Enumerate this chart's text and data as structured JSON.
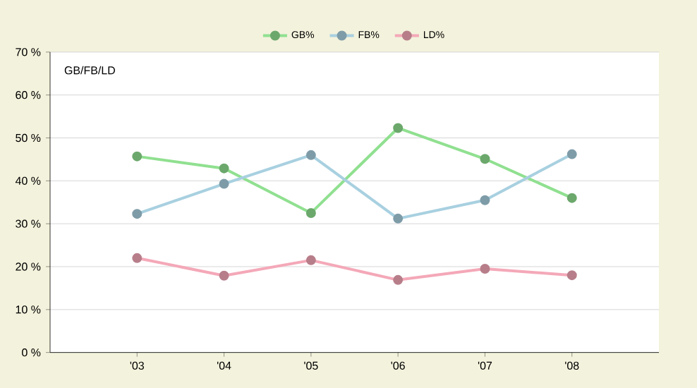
{
  "chart_data": {
    "type": "line",
    "title": "GB/FB/LD",
    "categories": [
      "'03",
      "'04",
      "'05",
      "'06",
      "'07",
      "'08"
    ],
    "series": [
      {
        "name": "GB%",
        "color": "#90e090",
        "values": [
          45.7,
          42.9,
          32.5,
          52.3,
          45.1,
          36.0
        ]
      },
      {
        "name": "FB%",
        "color": "#a8d0e0",
        "values": [
          32.3,
          39.3,
          46.0,
          31.2,
          35.5,
          46.2
        ]
      },
      {
        "name": "LD%",
        "color": "#f4a8b8",
        "values": [
          22.0,
          17.9,
          21.5,
          16.9,
          19.5,
          18.0
        ]
      }
    ],
    "ylim": [
      0,
      70
    ],
    "yticks": [
      {
        "value": 0,
        "label": "0 %"
      },
      {
        "value": 10,
        "label": "10 %"
      },
      {
        "value": 20,
        "label": "20 %"
      },
      {
        "value": 30,
        "label": "30 %"
      },
      {
        "value": 40,
        "label": "40 %"
      },
      {
        "value": 50,
        "label": "50 %"
      },
      {
        "value": 60,
        "label": "60 %"
      },
      {
        "value": 70,
        "label": "70 %"
      }
    ],
    "grid": "y",
    "legend": "top",
    "marker": "circle",
    "line_style": "solid"
  }
}
